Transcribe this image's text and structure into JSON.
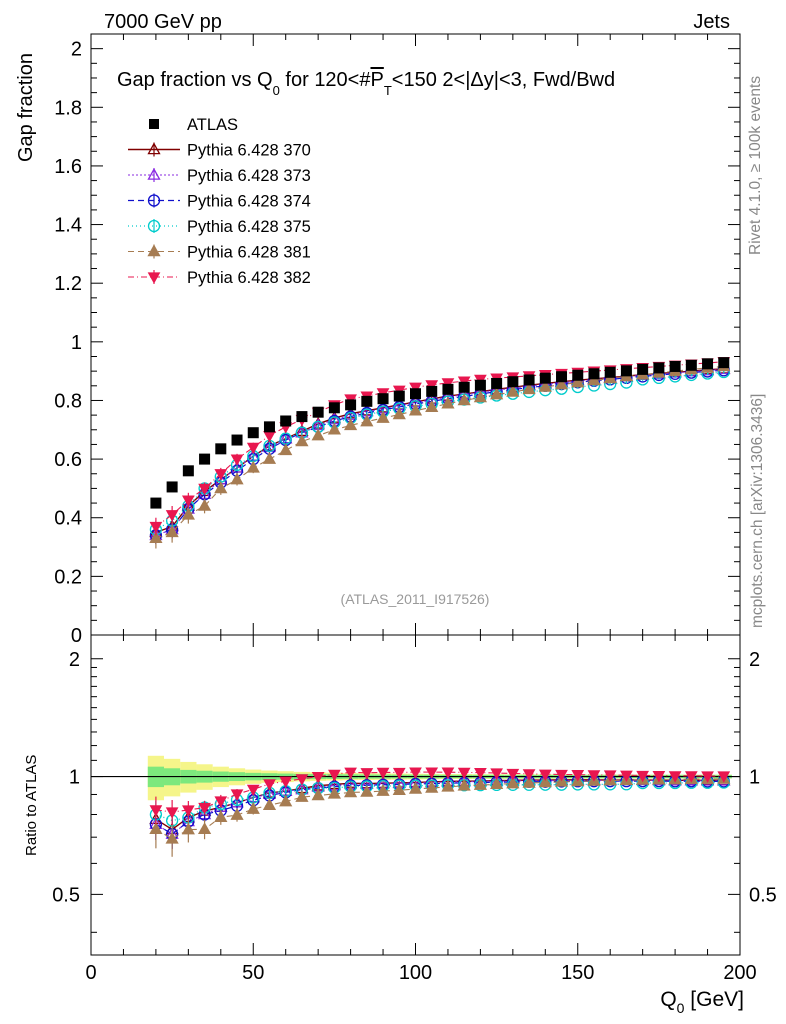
{
  "header": {
    "left": "7000 GeV pp",
    "right": "Jets"
  },
  "side_labels": {
    "rivet": "Rivet 4.1.0, ≥ 100k events",
    "mcplots": "mcplots.cern.ch [arXiv:1306.3436]"
  },
  "title": {
    "lead": "Gap fraction vs Q",
    "sub0": "0",
    "mid": " for 120<#",
    "pbar": "P",
    "subT": "T",
    "tail": "<150  2<|Δy|<3, Fwd/Bwd"
  },
  "source_label": "(ATLAS_2011_I917526)",
  "axes": {
    "ylabel_top": "Gap fraction",
    "ylabel_bottom": "Ratio to ATLAS",
    "xlabel": "Q",
    "xlabel_sub": "0",
    "xlabel_unit": " [GeV]"
  },
  "colors": {
    "ATLAS": "#000000",
    "370": "#800000",
    "373": "#8a2be2",
    "374": "#1010cc",
    "375": "#00cccc",
    "381": "#a67c52",
    "382": "#e8174f",
    "band_inner": "#7de87d",
    "band_outer": "#f5f58a"
  },
  "chart_data": {
    "type": "scatter",
    "x_range": [
      0,
      200
    ],
    "x_ticks": [
      "0",
      "50",
      "100",
      "150",
      "200"
    ],
    "main": {
      "y_range": [
        0,
        2.05
      ],
      "y_ticks": [
        "0",
        "0.2",
        "0.4",
        "0.6",
        "0.8",
        "1",
        "1.2",
        "1.4",
        "1.6",
        "1.8",
        "2"
      ]
    },
    "ratio": {
      "y_range": [
        0.35,
        2.3
      ],
      "y_ticks": [
        "0.5",
        "1",
        "2"
      ],
      "reference": 1.0
    },
    "x": [
      20,
      25,
      30,
      35,
      40,
      45,
      50,
      55,
      60,
      65,
      70,
      75,
      80,
      85,
      90,
      95,
      100,
      105,
      110,
      115,
      120,
      125,
      130,
      135,
      140,
      145,
      150,
      155,
      160,
      165,
      170,
      175,
      180,
      185,
      190,
      195
    ],
    "data_series": {
      "name": "ATLAS",
      "values": [
        0.45,
        0.505,
        0.56,
        0.6,
        0.635,
        0.665,
        0.69,
        0.71,
        0.73,
        0.745,
        0.76,
        0.775,
        0.785,
        0.797,
        0.806,
        0.815,
        0.823,
        0.831,
        0.838,
        0.845,
        0.852,
        0.858,
        0.864,
        0.87,
        0.876,
        0.881,
        0.886,
        0.891,
        0.896,
        0.901,
        0.906,
        0.911,
        0.916,
        0.92,
        0.925,
        0.929
      ],
      "band_inner": [
        0.06,
        0.05,
        0.04,
        0.035,
        0.03,
        0.026,
        0.022,
        0.02,
        0.018,
        0.016,
        0.015,
        0.014,
        0.013,
        0.012,
        0.012,
        0.011,
        0.011,
        0.011,
        0.01,
        0.01,
        0.01,
        0.01,
        0.01,
        0.01,
        0.01,
        0.01,
        0.01,
        0.01,
        0.01,
        0.01,
        0.01,
        0.01,
        0.01,
        0.01,
        0.01,
        0.01
      ],
      "band_outer": [
        0.13,
        0.11,
        0.09,
        0.075,
        0.06,
        0.05,
        0.042,
        0.036,
        0.032,
        0.028,
        0.025,
        0.023,
        0.021,
        0.02,
        0.019,
        0.018,
        0.017,
        0.016,
        0.015,
        0.015,
        0.014,
        0.014,
        0.013,
        0.013,
        0.013,
        0.012,
        0.012,
        0.012,
        0.012,
        0.012,
        0.011,
        0.011,
        0.011,
        0.011,
        0.011,
        0.011
      ]
    },
    "series": [
      {
        "name": "Pythia 6.428 370",
        "key": "370",
        "marker": "triangle-open",
        "dash": "",
        "width": 1.4,
        "values": [
          0.35,
          0.37,
          0.44,
          0.49,
          0.53,
          0.57,
          0.61,
          0.645,
          0.67,
          0.695,
          0.72,
          0.74,
          0.755,
          0.765,
          0.775,
          0.785,
          0.795,
          0.805,
          0.815,
          0.822,
          0.83,
          0.838,
          0.845,
          0.852,
          0.858,
          0.864,
          0.869,
          0.874,
          0.878,
          0.883,
          0.888,
          0.892,
          0.896,
          0.9,
          0.905,
          0.908
        ],
        "err": [
          0.03,
          0.03,
          0.025,
          0.02,
          0.02,
          0.018,
          0.016,
          0.014,
          0.012,
          0.01,
          0.01,
          0.009,
          0.009,
          0.008,
          0.008,
          0.008,
          0.007,
          0.007,
          0.007,
          0.007,
          0.006,
          0.006,
          0.006,
          0.006,
          0.006,
          0.006,
          0.006,
          0.005,
          0.005,
          0.005,
          0.005,
          0.005,
          0.005,
          0.005,
          0.005,
          0.005
        ]
      },
      {
        "name": "Pythia 6.428 373",
        "key": "373",
        "marker": "triangle-open",
        "dash": "2,2",
        "width": 1.1,
        "values": [
          0.34,
          0.36,
          0.43,
          0.48,
          0.53,
          0.57,
          0.61,
          0.64,
          0.67,
          0.69,
          0.715,
          0.735,
          0.75,
          0.762,
          0.772,
          0.783,
          0.793,
          0.802,
          0.812,
          0.82,
          0.828,
          0.835,
          0.842,
          0.849,
          0.855,
          0.861,
          0.866,
          0.871,
          0.876,
          0.881,
          0.886,
          0.89,
          0.894,
          0.898,
          0.902,
          0.906
        ],
        "err": [
          0.03,
          0.03,
          0.025,
          0.02,
          0.02,
          0.018,
          0.016,
          0.014,
          0.012,
          0.01,
          0.01,
          0.009,
          0.009,
          0.008,
          0.008,
          0.008,
          0.007,
          0.007,
          0.007,
          0.007,
          0.006,
          0.006,
          0.006,
          0.006,
          0.006,
          0.006,
          0.006,
          0.005,
          0.005,
          0.005,
          0.005,
          0.005,
          0.005,
          0.005,
          0.005,
          0.005
        ]
      },
      {
        "name": "Pythia 6.428 374",
        "key": "374",
        "marker": "circle-open",
        "dash": "6,4",
        "width": 1.2,
        "values": [
          0.34,
          0.36,
          0.43,
          0.48,
          0.52,
          0.56,
          0.6,
          0.635,
          0.665,
          0.69,
          0.71,
          0.73,
          0.745,
          0.757,
          0.768,
          0.778,
          0.788,
          0.797,
          0.806,
          0.814,
          0.822,
          0.83,
          0.837,
          0.844,
          0.85,
          0.856,
          0.862,
          0.867,
          0.872,
          0.877,
          0.882,
          0.887,
          0.891,
          0.895,
          0.899,
          0.903
        ],
        "err": [
          0.03,
          0.03,
          0.025,
          0.02,
          0.02,
          0.018,
          0.016,
          0.014,
          0.012,
          0.01,
          0.01,
          0.009,
          0.009,
          0.008,
          0.008,
          0.008,
          0.007,
          0.007,
          0.007,
          0.007,
          0.006,
          0.006,
          0.006,
          0.006,
          0.006,
          0.006,
          0.006,
          0.005,
          0.005,
          0.005,
          0.005,
          0.005,
          0.005,
          0.005,
          0.005,
          0.005
        ]
      },
      {
        "name": "Pythia 6.428 375",
        "key": "375",
        "marker": "circle-open",
        "dash": "1,3",
        "width": 1.3,
        "values": [
          0.36,
          0.39,
          0.44,
          0.5,
          0.54,
          0.58,
          0.61,
          0.645,
          0.67,
          0.69,
          0.71,
          0.725,
          0.74,
          0.752,
          0.762,
          0.772,
          0.78,
          0.788,
          0.796,
          0.803,
          0.81,
          0.817,
          0.823,
          0.829,
          0.835,
          0.84,
          0.846,
          0.851,
          0.856,
          0.861,
          0.872,
          0.877,
          0.882,
          0.887,
          0.892,
          0.897
        ],
        "err": [
          0.03,
          0.03,
          0.025,
          0.02,
          0.02,
          0.018,
          0.016,
          0.014,
          0.012,
          0.01,
          0.01,
          0.009,
          0.009,
          0.008,
          0.008,
          0.008,
          0.007,
          0.007,
          0.007,
          0.007,
          0.006,
          0.006,
          0.006,
          0.006,
          0.006,
          0.006,
          0.006,
          0.005,
          0.005,
          0.005,
          0.005,
          0.005,
          0.005,
          0.005,
          0.005,
          0.005
        ]
      },
      {
        "name": "Pythia 6.428 381",
        "key": "381",
        "marker": "triangle-filled",
        "dash": "6,4",
        "width": 1.1,
        "values": [
          0.33,
          0.35,
          0.41,
          0.44,
          0.5,
          0.53,
          0.57,
          0.6,
          0.63,
          0.66,
          0.68,
          0.7,
          0.715,
          0.728,
          0.74,
          0.752,
          0.765,
          0.777,
          0.789,
          0.8,
          0.81,
          0.82,
          0.829,
          0.838,
          0.846,
          0.854,
          0.861,
          0.868,
          0.875,
          0.882,
          0.888,
          0.894,
          0.9,
          0.906,
          0.911,
          0.916
        ],
        "err": [
          0.035,
          0.035,
          0.03,
          0.025,
          0.022,
          0.02,
          0.018,
          0.015,
          0.013,
          0.012,
          0.011,
          0.01,
          0.01,
          0.009,
          0.009,
          0.008,
          0.008,
          0.008,
          0.007,
          0.007,
          0.007,
          0.007,
          0.006,
          0.006,
          0.006,
          0.006,
          0.006,
          0.006,
          0.005,
          0.005,
          0.005,
          0.005,
          0.005,
          0.005,
          0.005,
          0.005
        ]
      },
      {
        "name": "Pythia 6.428 382",
        "key": "382",
        "marker": "triangle-down-filled",
        "dash": "6,3,1,3",
        "width": 1.1,
        "values": [
          0.37,
          0.41,
          0.46,
          0.5,
          0.55,
          0.6,
          0.64,
          0.68,
          0.71,
          0.735,
          0.76,
          0.785,
          0.805,
          0.815,
          0.826,
          0.835,
          0.845,
          0.853,
          0.86,
          0.866,
          0.872,
          0.876,
          0.88,
          0.884,
          0.888,
          0.892,
          0.896,
          0.9,
          0.904,
          0.908,
          0.912,
          0.916,
          0.92,
          0.924,
          0.928,
          0.932
        ],
        "err": [
          0.03,
          0.03,
          0.025,
          0.02,
          0.02,
          0.018,
          0.016,
          0.014,
          0.012,
          0.01,
          0.01,
          0.009,
          0.009,
          0.008,
          0.008,
          0.008,
          0.007,
          0.007,
          0.007,
          0.007,
          0.006,
          0.006,
          0.006,
          0.006,
          0.006,
          0.006,
          0.006,
          0.005,
          0.005,
          0.005,
          0.005,
          0.005,
          0.005,
          0.005,
          0.005,
          0.005
        ]
      }
    ]
  }
}
